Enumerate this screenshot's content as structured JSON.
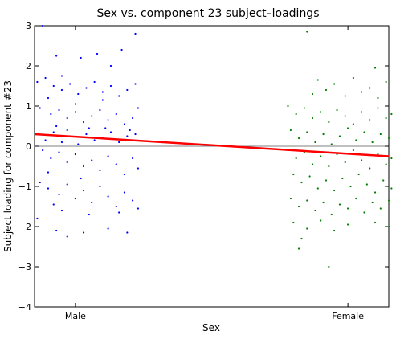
{
  "chart_data": {
    "type": "scatter",
    "title": "Sex vs. component 23 subject–loadings",
    "xlabel": "Sex",
    "ylabel": "Subject loading for component #23",
    "categories": [
      "Male",
      "Female"
    ],
    "xlim": [
      0.85,
      2.15
    ],
    "ylim": [
      -4,
      3
    ],
    "yticks": [
      -4,
      -3,
      -2,
      -1,
      0,
      1,
      2,
      3
    ],
    "grid": false,
    "zero_line": true,
    "series": [
      {
        "category": "Male",
        "color": "#0000ff",
        "points": [
          [
            0.88,
            3.0
          ],
          [
            0.93,
            2.25
          ],
          [
            1.08,
            2.3
          ],
          [
            0.95,
            1.75
          ],
          [
            1.02,
            2.2
          ],
          [
            1.17,
            2.4
          ],
          [
            1.22,
            2.8
          ],
          [
            1.13,
            2.0
          ],
          [
            0.86,
            1.6
          ],
          [
            0.89,
            1.7
          ],
          [
            0.92,
            1.5
          ],
          [
            0.95,
            1.4
          ],
          [
            0.98,
            1.55
          ],
          [
            1.01,
            1.3
          ],
          [
            1.04,
            1.45
          ],
          [
            1.07,
            1.6
          ],
          [
            1.1,
            1.35
          ],
          [
            1.13,
            1.5
          ],
          [
            1.16,
            1.25
          ],
          [
            1.19,
            1.4
          ],
          [
            1.22,
            1.55
          ],
          [
            0.9,
            1.2
          ],
          [
            1.0,
            1.05
          ],
          [
            1.1,
            1.15
          ],
          [
            0.87,
            0.95
          ],
          [
            0.91,
            0.8
          ],
          [
            0.94,
            0.9
          ],
          [
            0.97,
            0.7
          ],
          [
            1.0,
            0.85
          ],
          [
            1.03,
            0.6
          ],
          [
            1.06,
            0.75
          ],
          [
            1.09,
            0.9
          ],
          [
            1.12,
            0.65
          ],
          [
            1.15,
            0.8
          ],
          [
            1.18,
            0.55
          ],
          [
            1.21,
            0.7
          ],
          [
            1.23,
            0.95
          ],
          [
            0.93,
            0.5
          ],
          [
            1.05,
            0.45
          ],
          [
            1.2,
            0.4
          ],
          [
            0.86,
            0.3
          ],
          [
            0.89,
            0.15
          ],
          [
            0.92,
            0.35
          ],
          [
            0.95,
            0.1
          ],
          [
            0.98,
            0.25
          ],
          [
            1.01,
            0.05
          ],
          [
            1.04,
            0.3
          ],
          [
            1.07,
            0.15
          ],
          [
            1.1,
            0.2
          ],
          [
            1.13,
            0.35
          ],
          [
            1.16,
            0.1
          ],
          [
            1.19,
            0.25
          ],
          [
            1.22,
            0.3
          ],
          [
            0.97,
            0.4
          ],
          [
            1.11,
            0.45
          ],
          [
            0.88,
            -0.1
          ],
          [
            0.91,
            -0.3
          ],
          [
            0.94,
            -0.15
          ],
          [
            0.97,
            -0.4
          ],
          [
            1.0,
            -0.2
          ],
          [
            1.03,
            -0.5
          ],
          [
            1.06,
            -0.35
          ],
          [
            1.09,
            -0.6
          ],
          [
            1.12,
            -0.25
          ],
          [
            1.15,
            -0.45
          ],
          [
            1.18,
            -0.7
          ],
          [
            1.21,
            -0.3
          ],
          [
            1.23,
            -0.55
          ],
          [
            0.9,
            -0.65
          ],
          [
            1.02,
            -0.8
          ],
          [
            0.87,
            -0.9
          ],
          [
            0.9,
            -1.05
          ],
          [
            0.94,
            -1.2
          ],
          [
            0.97,
            -0.95
          ],
          [
            1.0,
            -1.3
          ],
          [
            1.03,
            -1.1
          ],
          [
            1.06,
            -1.4
          ],
          [
            1.09,
            -1.0
          ],
          [
            1.12,
            -1.25
          ],
          [
            1.15,
            -1.5
          ],
          [
            1.18,
            -1.15
          ],
          [
            1.21,
            -1.35
          ],
          [
            1.23,
            -1.55
          ],
          [
            0.92,
            -1.45
          ],
          [
            0.86,
            -1.8
          ],
          [
            0.95,
            -1.6
          ],
          [
            1.05,
            -1.7
          ],
          [
            1.16,
            -1.65
          ],
          [
            0.93,
            -2.1
          ],
          [
            0.97,
            -2.25
          ],
          [
            1.03,
            -2.15
          ],
          [
            1.12,
            -2.05
          ],
          [
            1.19,
            -2.15
          ]
        ]
      },
      {
        "category": "Female",
        "color": "#008000",
        "points": [
          [
            1.85,
            2.85
          ],
          [
            2.1,
            1.95
          ],
          [
            1.89,
            1.65
          ],
          [
            1.95,
            1.55
          ],
          [
            2.02,
            1.7
          ],
          [
            2.08,
            1.45
          ],
          [
            2.14,
            1.6
          ],
          [
            1.87,
            1.3
          ],
          [
            1.92,
            1.4
          ],
          [
            1.99,
            1.25
          ],
          [
            2.05,
            1.35
          ],
          [
            2.11,
            1.2
          ],
          [
            1.78,
            1.0
          ],
          [
            1.81,
            0.8
          ],
          [
            1.84,
            0.95
          ],
          [
            1.87,
            0.7
          ],
          [
            1.9,
            0.85
          ],
          [
            1.93,
            0.6
          ],
          [
            1.96,
            0.9
          ],
          [
            1.99,
            0.75
          ],
          [
            2.02,
            0.55
          ],
          [
            2.05,
            0.85
          ],
          [
            2.08,
            0.65
          ],
          [
            2.11,
            0.95
          ],
          [
            2.14,
            0.7
          ],
          [
            2.16,
            0.8
          ],
          [
            1.79,
            0.4
          ],
          [
            1.82,
            0.2
          ],
          [
            1.85,
            0.35
          ],
          [
            1.88,
            0.1
          ],
          [
            1.91,
            0.3
          ],
          [
            1.94,
            0.05
          ],
          [
            1.97,
            0.25
          ],
          [
            2.0,
            0.45
          ],
          [
            2.03,
            0.15
          ],
          [
            2.06,
            0.35
          ],
          [
            2.09,
            0.1
          ],
          [
            2.12,
            0.3
          ],
          [
            2.15,
            0.2
          ],
          [
            1.78,
            -0.1
          ],
          [
            1.81,
            -0.3
          ],
          [
            1.84,
            -0.15
          ],
          [
            1.87,
            -0.45
          ],
          [
            1.9,
            -0.25
          ],
          [
            1.93,
            -0.5
          ],
          [
            1.96,
            -0.2
          ],
          [
            1.99,
            -0.4
          ],
          [
            2.02,
            -0.1
          ],
          [
            2.05,
            -0.35
          ],
          [
            2.08,
            -0.55
          ],
          [
            2.11,
            -0.2
          ],
          [
            2.14,
            -0.45
          ],
          [
            2.16,
            -0.3
          ],
          [
            1.8,
            -0.7
          ],
          [
            1.83,
            -0.9
          ],
          [
            1.86,
            -0.75
          ],
          [
            1.89,
            -1.05
          ],
          [
            1.92,
            -0.85
          ],
          [
            1.95,
            -1.1
          ],
          [
            1.98,
            -0.8
          ],
          [
            2.01,
            -1.0
          ],
          [
            2.04,
            -0.7
          ],
          [
            2.07,
            -0.95
          ],
          [
            2.1,
            -1.15
          ],
          [
            2.13,
            -0.85
          ],
          [
            2.16,
            -1.05
          ],
          [
            1.79,
            -1.3
          ],
          [
            1.82,
            -1.5
          ],
          [
            1.85,
            -1.35
          ],
          [
            1.88,
            -1.6
          ],
          [
            1.91,
            -1.4
          ],
          [
            1.94,
            -1.7
          ],
          [
            1.97,
            -1.45
          ],
          [
            2.0,
            -1.55
          ],
          [
            2.03,
            -1.3
          ],
          [
            2.06,
            -1.65
          ],
          [
            2.09,
            -1.4
          ],
          [
            2.12,
            -1.55
          ],
          [
            2.15,
            -1.35
          ],
          [
            1.8,
            -1.9
          ],
          [
            1.85,
            -2.05
          ],
          [
            1.9,
            -1.85
          ],
          [
            1.95,
            -2.1
          ],
          [
            2.0,
            -1.95
          ],
          [
            2.1,
            -1.9
          ],
          [
            2.15,
            -2.0
          ],
          [
            1.83,
            -2.3
          ],
          [
            1.82,
            -2.55
          ],
          [
            1.93,
            -3.0
          ]
        ]
      }
    ],
    "fit_line": {
      "color": "#ff0000",
      "x": [
        0.85,
        2.15
      ],
      "y": [
        0.3,
        -0.25
      ]
    }
  }
}
